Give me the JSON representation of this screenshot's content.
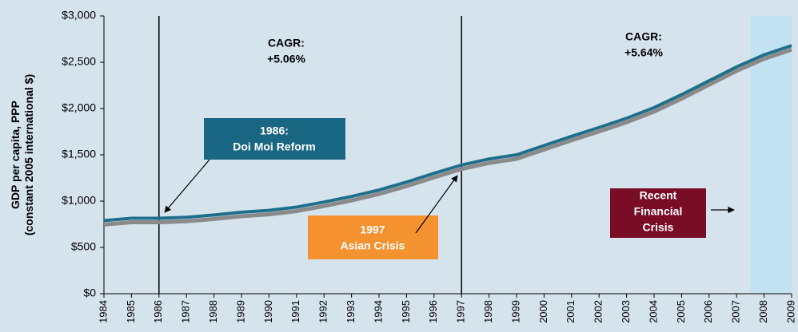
{
  "chart_data": {
    "type": "line",
    "ylabel": [
      "GDP per capita, PPP",
      "(constant 2005 international $)"
    ],
    "x": [
      1984,
      1985,
      1986,
      1987,
      1988,
      1989,
      1990,
      1991,
      1992,
      1993,
      1994,
      1995,
      1996,
      1997,
      1998,
      1999,
      2000,
      2001,
      2002,
      2003,
      2004,
      2005,
      2006,
      2007,
      2008,
      2009
    ],
    "series": [
      {
        "color": "#1f6f8b",
        "values": [
          790,
          815,
          815,
          825,
          850,
          880,
          900,
          935,
          990,
          1050,
          1120,
          1205,
          1300,
          1390,
          1455,
          1500,
          1600,
          1700,
          1795,
          1895,
          2010,
          2150,
          2300,
          2450,
          2580,
          2680
        ]
      }
    ],
    "xlim": [
      1984,
      2009
    ],
    "xticks": [
      1984,
      1985,
      1986,
      1987,
      1988,
      1989,
      1990,
      1991,
      1992,
      1993,
      1994,
      1995,
      1996,
      1997,
      1998,
      1999,
      2000,
      2001,
      2002,
      2003,
      2004,
      2005,
      2006,
      2007,
      2008,
      2009
    ],
    "ylim": [
      0,
      3000
    ],
    "yticks": [
      {
        "value": 0,
        "label": "$0"
      },
      {
        "value": 500,
        "label": "$500"
      },
      {
        "value": 1000,
        "label": "$1,000"
      },
      {
        "value": 1500,
        "label": "$1,500"
      },
      {
        "value": 2000,
        "label": "$2,000"
      },
      {
        "value": 2500,
        "label": "$2,500"
      },
      {
        "value": 3000,
        "label": "$3,000"
      }
    ],
    "vlines": [
      1986,
      1997
    ],
    "highlight_x": [
      2007.5,
      2009
    ],
    "annotations": [
      {
        "text": [
          "CAGR:",
          "+5.06%"
        ]
      },
      {
        "text": [
          "CAGR:",
          "+5.64%"
        ]
      },
      {
        "text": [
          "1986:",
          "Doi Moi Reform"
        ],
        "color": "#1a6783"
      },
      {
        "text": [
          "1997",
          "Asian Crisis"
        ],
        "color": "#f4922f"
      },
      {
        "text": [
          "Recent",
          "Financial",
          "Crisis"
        ],
        "color": "#7a0d26"
      }
    ]
  }
}
